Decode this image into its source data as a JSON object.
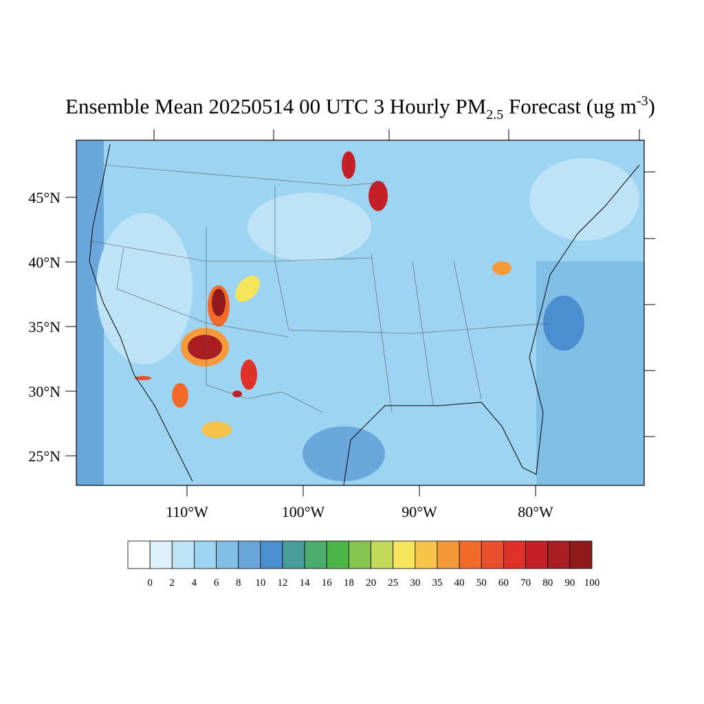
{
  "title": {
    "main": "Ensemble Mean 20250514 00 UTC 3 Hourly PM",
    "subscript": "2.5",
    "middle": " Forecast (ug m",
    "superscript": "-3",
    "end": ")"
  },
  "lat_labels": [
    "45°N",
    "40°N",
    "35°N",
    "30°N",
    "25°N"
  ],
  "lon_labels": [
    "110°W",
    "100°W",
    "90°W",
    "80°W"
  ],
  "colorbar": {
    "colors": [
      "#ffffff",
      "#dff1fb",
      "#bfe3f6",
      "#9cd4f2",
      "#82bfe6",
      "#6aa8dc",
      "#4b8ecf",
      "#489c9c",
      "#4aab6c",
      "#4cb54a",
      "#85c54f",
      "#c3d95a",
      "#f5e55b",
      "#f7c34a",
      "#f59a3b",
      "#f26b2a",
      "#e8502d",
      "#e0302a",
      "#c4202a",
      "#a81c22",
      "#8f1a1c"
    ],
    "levels": [
      0,
      2,
      4,
      6,
      8,
      10,
      12,
      14,
      16,
      18,
      20,
      25,
      30,
      35,
      40,
      50,
      60,
      70,
      80,
      90,
      100
    ]
  }
}
